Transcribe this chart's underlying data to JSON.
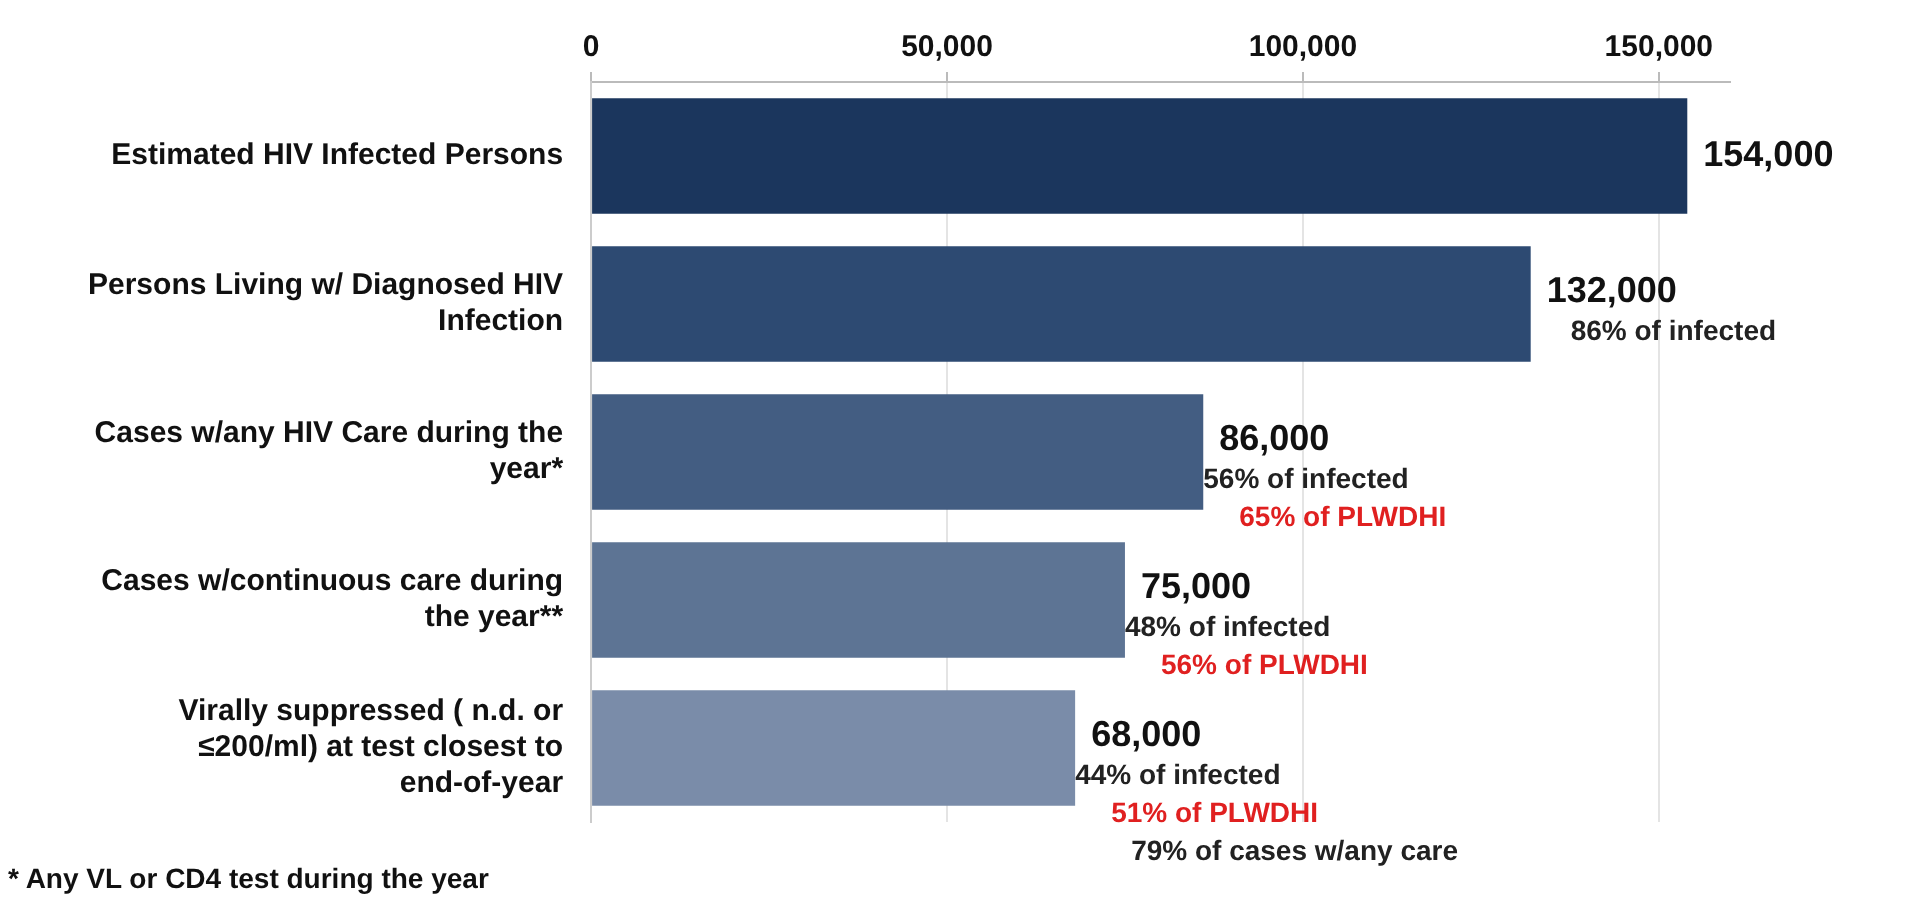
{
  "chart_data": {
    "type": "bar",
    "orientation": "horizontal",
    "categories": [
      "Estimated HIV Infected Persons",
      "Persons Living w/ Diagnosed HIV Infection",
      "Cases w/any HIV Care during the year*",
      "Cases w/continuous care during the year**",
      "Virally suppressed ( n.d. or ≤200/ml) at test closest to end-of-year"
    ],
    "values": [
      154000,
      132000,
      86000,
      75000,
      68000
    ],
    "colors": [
      "#1b365d",
      "#2d4a72",
      "#435d82",
      "#5d7494",
      "#7a8ca9"
    ],
    "value_labels": [
      "154,000",
      "132,000",
      "86,000",
      "75,000",
      "68,000"
    ],
    "xlim": [
      0,
      160000
    ],
    "xticks": [
      {
        "value": 0,
        "label": "0"
      },
      {
        "value": 50000,
        "label": "50,000"
      },
      {
        "value": 100000,
        "label": "100,000"
      },
      {
        "value": 150000,
        "label": "150,000"
      }
    ],
    "grid": "x",
    "legend": false,
    "annotations": [
      {
        "text": "86% of infected",
        "x": 132000,
        "y": "Persons Living w/ Diagnosed HIV Infection"
      },
      {
        "text": "56% of infected",
        "x": 86000,
        "y": "Cases w/any HIV Care during the year*"
      },
      {
        "text": "65% of PLWDHI",
        "x": 86000,
        "y": "Cases w/any HIV Care during the year*"
      },
      {
        "text": "48% of infected",
        "x": 75000,
        "y": "Cases w/continuous care during the year**"
      },
      {
        "text": "56% of PLWDHI",
        "x": 75000,
        "y": "Cases w/continuous care during the year**"
      },
      {
        "text": "44% of infected",
        "x": 68000,
        "y": "Virally suppressed ( n.d. or ≤200/ml) at test closest to end-of-year"
      },
      {
        "text": "51% of PLWDHI",
        "x": 68000,
        "y": "Virally suppressed ( n.d. or ≤200/ml) at test closest to end-of-year"
      },
      {
        "text": "79% of cases w/any care",
        "x": 68000,
        "y": "Virally suppressed ( n.d. or ≤200/ml) at test closest to end-of-year"
      },
      "* Any VL or CD4 test during the year"
    ]
  }
}
